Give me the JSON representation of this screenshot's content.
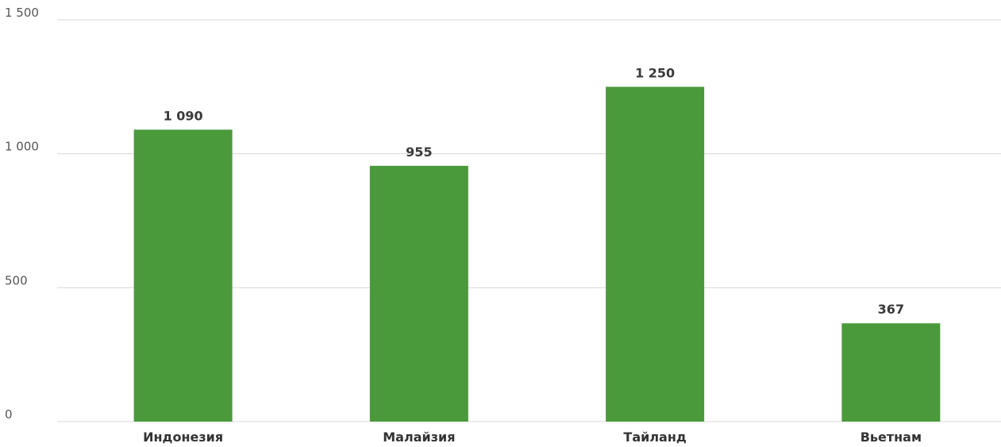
{
  "chart_data": {
    "type": "bar",
    "categories": [
      "Индонезия",
      "Малайзия",
      "Тайланд",
      "Вьетнам"
    ],
    "values": [
      1090,
      955,
      1250,
      367
    ],
    "value_labels": [
      "1 090",
      "955",
      "1 250",
      "367"
    ],
    "title": "",
    "xlabel": "",
    "ylabel": "",
    "ylim": [
      0,
      1500
    ],
    "yticks": [
      0,
      500,
      1000,
      1500
    ],
    "ytick_labels": [
      "0",
      "500",
      "1 000",
      "1 500"
    ],
    "grid": true,
    "legend": "none",
    "bar_color": "#4a9a3b"
  }
}
